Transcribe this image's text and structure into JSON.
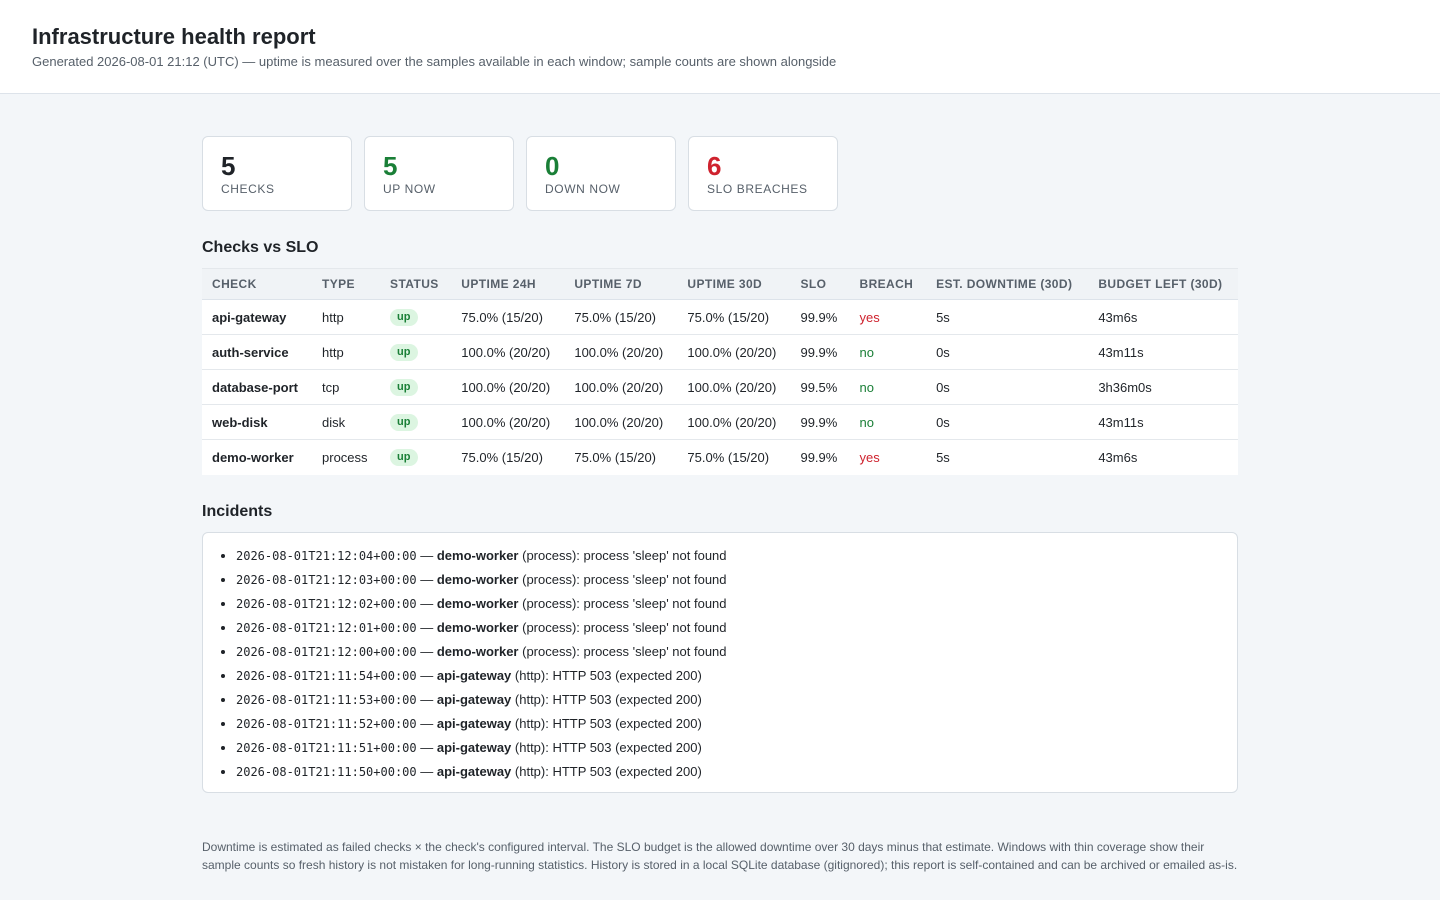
{
  "header": {
    "title": "Infrastructure health report",
    "subtitle": "Generated 2026-08-01 21:12 (UTC) — uptime is measured over the samples available in each window; sample counts are shown alongside"
  },
  "summary": [
    {
      "value": "5",
      "label": "CHECKS",
      "color": "#1f2328"
    },
    {
      "value": "5",
      "label": "UP NOW",
      "color": "#1a7f37"
    },
    {
      "value": "0",
      "label": "DOWN NOW",
      "color": "#1a7f37"
    },
    {
      "value": "6",
      "label": "SLO BREACHES",
      "color": "#cf222e"
    }
  ],
  "slo_section": {
    "heading": "Checks vs SLO",
    "columns": [
      "CHECK",
      "TYPE",
      "STATUS",
      "UPTIME 24H",
      "UPTIME 7D",
      "UPTIME 30D",
      "SLO",
      "BREACH",
      "EST. DOWNTIME (30D)",
      "BUDGET LEFT (30D)"
    ],
    "rows": [
      {
        "check": "api-gateway",
        "type": "http",
        "status": "up",
        "uptime_24h": "75.0% (15/20)",
        "uptime_7d": "75.0% (15/20)",
        "uptime_30d": "75.0% (15/20)",
        "slo": "99.9%",
        "breach": "yes",
        "downtime": "5s",
        "budget": "43m6s"
      },
      {
        "check": "auth-service",
        "type": "http",
        "status": "up",
        "uptime_24h": "100.0% (20/20)",
        "uptime_7d": "100.0% (20/20)",
        "uptime_30d": "100.0% (20/20)",
        "slo": "99.9%",
        "breach": "no",
        "downtime": "0s",
        "budget": "43m11s"
      },
      {
        "check": "database-port",
        "type": "tcp",
        "status": "up",
        "uptime_24h": "100.0% (20/20)",
        "uptime_7d": "100.0% (20/20)",
        "uptime_30d": "100.0% (20/20)",
        "slo": "99.5%",
        "breach": "no",
        "downtime": "0s",
        "budget": "3h36m0s"
      },
      {
        "check": "web-disk",
        "type": "disk",
        "status": "up",
        "uptime_24h": "100.0% (20/20)",
        "uptime_7d": "100.0% (20/20)",
        "uptime_30d": "100.0% (20/20)",
        "slo": "99.9%",
        "breach": "no",
        "downtime": "0s",
        "budget": "43m11s"
      },
      {
        "check": "demo-worker",
        "type": "process",
        "status": "up",
        "uptime_24h": "75.0% (15/20)",
        "uptime_7d": "75.0% (15/20)",
        "uptime_30d": "75.0% (15/20)",
        "slo": "99.9%",
        "breach": "yes",
        "downtime": "5s",
        "budget": "43m6s"
      }
    ]
  },
  "incidents_section": {
    "heading": "Incidents",
    "items": [
      {
        "time": "2026-08-01T21:12:04+00:00",
        "sep": " — ",
        "check": "demo-worker",
        "detail": " (process): process 'sleep' not found"
      },
      {
        "time": "2026-08-01T21:12:03+00:00",
        "sep": " — ",
        "check": "demo-worker",
        "detail": " (process): process 'sleep' not found"
      },
      {
        "time": "2026-08-01T21:12:02+00:00",
        "sep": " — ",
        "check": "demo-worker",
        "detail": " (process): process 'sleep' not found"
      },
      {
        "time": "2026-08-01T21:12:01+00:00",
        "sep": " — ",
        "check": "demo-worker",
        "detail": " (process): process 'sleep' not found"
      },
      {
        "time": "2026-08-01T21:12:00+00:00",
        "sep": " — ",
        "check": "demo-worker",
        "detail": " (process): process 'sleep' not found"
      },
      {
        "time": "2026-08-01T21:11:54+00:00",
        "sep": " — ",
        "check": "api-gateway",
        "detail": " (http): HTTP 503 (expected 200)"
      },
      {
        "time": "2026-08-01T21:11:53+00:00",
        "sep": " — ",
        "check": "api-gateway",
        "detail": " (http): HTTP 503 (expected 200)"
      },
      {
        "time": "2026-08-01T21:11:52+00:00",
        "sep": " — ",
        "check": "api-gateway",
        "detail": " (http): HTTP 503 (expected 200)"
      },
      {
        "time": "2026-08-01T21:11:51+00:00",
        "sep": " — ",
        "check": "api-gateway",
        "detail": " (http): HTTP 503 (expected 200)"
      },
      {
        "time": "2026-08-01T21:11:50+00:00",
        "sep": " — ",
        "check": "api-gateway",
        "detail": " (http): HTTP 503 (expected 200)"
      }
    ]
  },
  "footer": {
    "text": "Downtime is estimated as failed checks × the check's configured interval. The SLO budget is the allowed downtime over 30 days minus that estimate. Windows with thin coverage show their sample counts so fresh history is not mistaken for long-running statistics. History is stored in a local SQLite database (gitignored); this report is self-contained and can be archived or emailed as-is."
  },
  "colors": {
    "ok": "#1a7f37",
    "bad": "#cf222e",
    "text": "#1f2328",
    "muted": "#57606a"
  }
}
